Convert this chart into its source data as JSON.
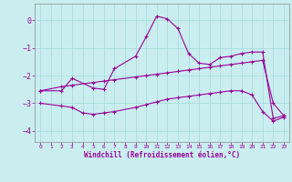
{
  "xlabel": "Windchill (Refroidissement éolien,°C)",
  "background_color": "#caeef0",
  "line_color": "#990099",
  "grid_color": "#aadddd",
  "xlim": [
    -0.5,
    23.5
  ],
  "ylim": [
    -4.4,
    0.6
  ],
  "yticks": [
    0,
    -1,
    -2,
    -3,
    -4
  ],
  "xticks": [
    0,
    1,
    2,
    3,
    4,
    5,
    6,
    7,
    8,
    9,
    10,
    11,
    12,
    13,
    14,
    15,
    16,
    17,
    18,
    19,
    20,
    21,
    22,
    23
  ],
  "line1_x": [
    0,
    2,
    3,
    5,
    6,
    7,
    9,
    10,
    11,
    12,
    13,
    14,
    15,
    16,
    17,
    18,
    19,
    20,
    21,
    22,
    23
  ],
  "line1_y": [
    -2.55,
    -2.55,
    -2.1,
    -2.45,
    -2.5,
    -1.75,
    -1.3,
    -0.6,
    0.15,
    0.05,
    -0.3,
    -1.2,
    -1.55,
    -1.6,
    -1.35,
    -1.3,
    -1.2,
    -1.15,
    -1.15,
    -3.55,
    -3.45
  ],
  "line2_x": [
    0,
    2,
    3,
    5,
    6,
    7,
    9,
    10,
    11,
    12,
    13,
    14,
    15,
    16,
    17,
    18,
    19,
    20,
    21,
    22,
    23
  ],
  "line2_y": [
    -2.55,
    -2.4,
    -2.35,
    -2.25,
    -2.2,
    -2.15,
    -2.05,
    -2.0,
    -1.95,
    -1.9,
    -1.85,
    -1.8,
    -1.75,
    -1.7,
    -1.65,
    -1.6,
    -1.55,
    -1.5,
    -1.45,
    -3.0,
    -3.45
  ],
  "line3_x": [
    0,
    2,
    3,
    4,
    5,
    6,
    7,
    9,
    10,
    11,
    12,
    13,
    14,
    15,
    16,
    17,
    18,
    19,
    20,
    21,
    22,
    23
  ],
  "line3_y": [
    -3.0,
    -3.1,
    -3.15,
    -3.35,
    -3.4,
    -3.35,
    -3.3,
    -3.15,
    -3.05,
    -2.95,
    -2.85,
    -2.8,
    -2.75,
    -2.7,
    -2.65,
    -2.6,
    -2.55,
    -2.55,
    -2.7,
    -3.3,
    -3.65,
    -3.5
  ]
}
